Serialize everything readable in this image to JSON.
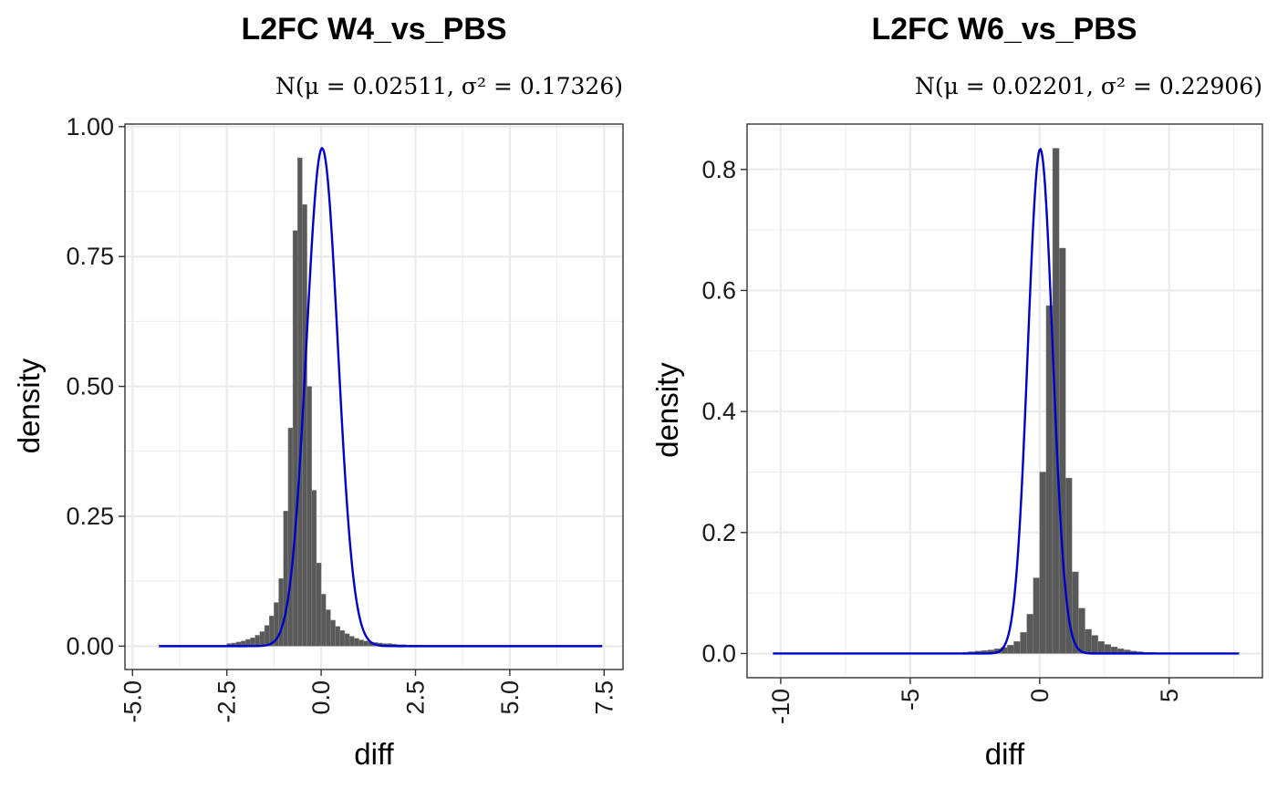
{
  "chart_data": [
    {
      "type": "histogram",
      "title": "L2FC W4_vs_PBS",
      "subtitle": "N(μ = 0.02511,  σ² = 0.17326)",
      "xlabel": "diff",
      "ylabel": "density",
      "xlim": [
        -5.2,
        8.0
      ],
      "ylim": [
        -0.045,
        1.005
      ],
      "x_ticks": [
        -5.0,
        -2.5,
        0.0,
        2.5,
        5.0,
        7.5
      ],
      "x_tick_labels": [
        "-5.0",
        "-2.5",
        "0.0",
        "2.5",
        "5.0",
        "7.5"
      ],
      "y_ticks": [
        0.0,
        0.25,
        0.5,
        0.75,
        1.0
      ],
      "y_tick_labels": [
        "0.00",
        "0.25",
        "0.50",
        "0.75",
        "1.00"
      ],
      "grid": true,
      "bins": {
        "start": -2.5,
        "width": 0.125,
        "values": [
          0.005,
          0.006,
          0.008,
          0.01,
          0.013,
          0.016,
          0.021,
          0.028,
          0.04,
          0.058,
          0.084,
          0.13,
          0.26,
          0.42,
          0.8,
          0.94,
          0.85,
          0.5,
          0.3,
          0.16,
          0.1,
          0.07,
          0.05,
          0.038,
          0.03,
          0.024,
          0.019,
          0.015,
          0.012,
          0.01,
          0.008,
          0.007,
          0.006,
          0.005,
          0.005,
          0.004,
          0.003,
          0.003,
          0.002,
          0.002,
          0.002,
          0.001,
          0.001,
          0.001
        ]
      },
      "normal_curve": {
        "mean": 0.02511,
        "variance": 0.17326,
        "x_range": [
          -4.3,
          7.45
        ],
        "color": "#0000cc"
      },
      "bar_color": "#595959"
    },
    {
      "type": "histogram",
      "title": "L2FC W6_vs_PBS",
      "subtitle": "N(μ = 0.02201,  σ² = 0.22906)",
      "xlabel": "diff",
      "ylabel": "density",
      "xlim": [
        -11.3,
        8.6
      ],
      "ylim": [
        -0.04,
        0.875
      ],
      "x_ticks": [
        -10,
        -5,
        0,
        5
      ],
      "x_tick_labels": [
        "-10",
        "-5",
        "0",
        "5"
      ],
      "y_ticks": [
        0.0,
        0.2,
        0.4,
        0.6,
        0.8
      ],
      "y_tick_labels": [
        "0.0",
        "0.2",
        "0.4",
        "0.6",
        "0.8"
      ],
      "grid": true,
      "bins": {
        "start": -3.0,
        "width": 0.25,
        "values": [
          0.002,
          0.003,
          0.004,
          0.005,
          0.006,
          0.008,
          0.01,
          0.014,
          0.02,
          0.035,
          0.065,
          0.125,
          0.3,
          0.575,
          0.835,
          0.67,
          0.29,
          0.135,
          0.075,
          0.04,
          0.03,
          0.02,
          0.015,
          0.011,
          0.008,
          0.006,
          0.004,
          0.003,
          0.002,
          0.002
        ]
      },
      "normal_curve": {
        "mean": 0.02201,
        "variance": 0.22906,
        "x_range": [
          -10.3,
          7.7
        ],
        "color": "#0000cc"
      },
      "bar_color": "#595959"
    }
  ]
}
